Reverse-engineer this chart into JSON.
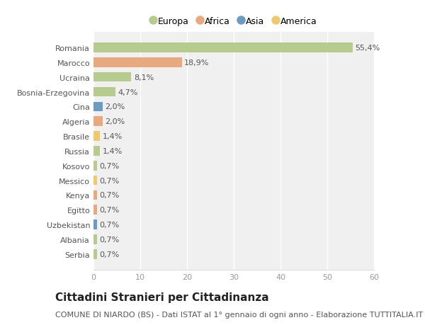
{
  "categories": [
    "Romania",
    "Marocco",
    "Ucraina",
    "Bosnia-Erzegovina",
    "Cina",
    "Algeria",
    "Brasile",
    "Russia",
    "Kosovo",
    "Messico",
    "Kenya",
    "Egitto",
    "Uzbekistan",
    "Albania",
    "Serbia"
  ],
  "values": [
    55.4,
    18.9,
    8.1,
    4.7,
    2.0,
    2.0,
    1.4,
    1.4,
    0.7,
    0.7,
    0.7,
    0.7,
    0.7,
    0.7,
    0.7
  ],
  "labels": [
    "55,4%",
    "18,9%",
    "8,1%",
    "4,7%",
    "2,0%",
    "2,0%",
    "1,4%",
    "1,4%",
    "0,7%",
    "0,7%",
    "0,7%",
    "0,7%",
    "0,7%",
    "0,7%",
    "0,7%"
  ],
  "colors": [
    "#b5cc8e",
    "#e8a97e",
    "#b5cc8e",
    "#b5cc8e",
    "#6b9bc3",
    "#e8a97e",
    "#f0c96e",
    "#b5cc8e",
    "#b5cc8e",
    "#f0c96e",
    "#e8a97e",
    "#e8a97e",
    "#6b9bc3",
    "#b5cc8e",
    "#b5cc8e"
  ],
  "legend_labels": [
    "Europa",
    "Africa",
    "Asia",
    "America"
  ],
  "legend_colors": [
    "#b5cc8e",
    "#e8a97e",
    "#6b9bc3",
    "#f0c96e"
  ],
  "xlim": [
    0,
    60
  ],
  "xticks": [
    0,
    10,
    20,
    30,
    40,
    50,
    60
  ],
  "title": "Cittadini Stranieri per Cittadinanza",
  "subtitle": "COMUNE DI NIARDO (BS) - Dati ISTAT al 1° gennaio di ogni anno - Elaborazione TUTTITALIA.IT",
  "background_color": "#ffffff",
  "plot_bg_color": "#ffffff",
  "bar_height": 0.65,
  "title_fontsize": 11,
  "subtitle_fontsize": 8,
  "label_fontsize": 8,
  "tick_fontsize": 8,
  "legend_fontsize": 9
}
